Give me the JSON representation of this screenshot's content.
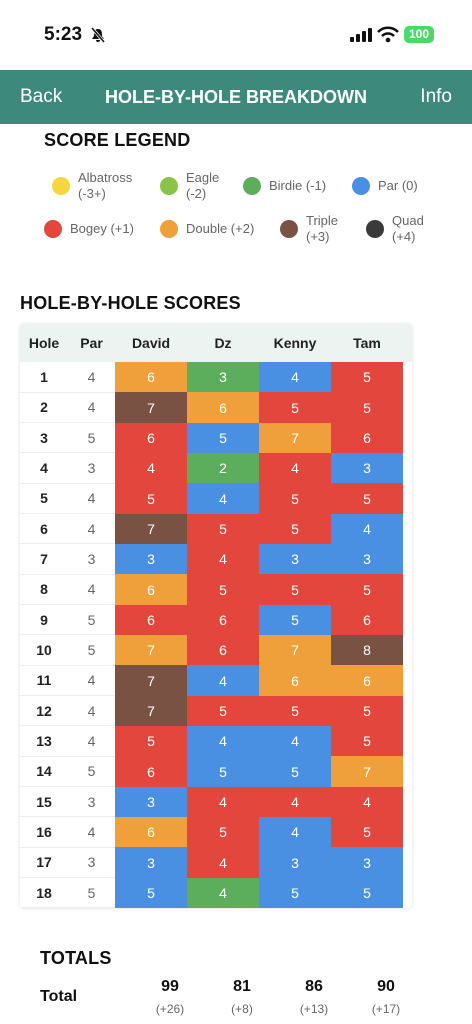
{
  "status": {
    "time": "5:23",
    "battery": "100"
  },
  "nav": {
    "back": "Back",
    "title": "HOLE-BY-HOLE BREAKDOWN",
    "info": "Info"
  },
  "legend": {
    "title": "SCORE LEGEND",
    "items": [
      {
        "lines": [
          "Albatross",
          "(-3+)"
        ],
        "color": "#f6d63f"
      },
      {
        "lines": [
          "Eagle",
          "(-2)"
        ],
        "color": "#8bc34a"
      },
      {
        "lines": [
          "Birdie (-1)"
        ],
        "color": "#5cad5c"
      },
      {
        "lines": [
          "Par (0)"
        ],
        "color": "#4a90e2"
      },
      {
        "lines": [
          "Bogey (+1)"
        ],
        "color": "#e2463c"
      },
      {
        "lines": [
          "Double (+2)"
        ],
        "color": "#f0a03a"
      },
      {
        "lines": [
          "Triple",
          "(+3)"
        ],
        "color": "#7a5244"
      },
      {
        "lines": [
          "Quad",
          "(+4)"
        ],
        "color": "#3a3a3a"
      }
    ]
  },
  "scores": {
    "title": "HOLE-BY-HOLE SCORES",
    "headers": [
      "Hole",
      "Par",
      "David",
      "Dz",
      "Kenny",
      "Tam"
    ],
    "rows": [
      [
        1,
        4,
        6,
        3,
        4,
        5
      ],
      [
        2,
        4,
        7,
        6,
        5,
        5
      ],
      [
        3,
        5,
        6,
        5,
        7,
        6
      ],
      [
        4,
        3,
        4,
        2,
        4,
        3
      ],
      [
        5,
        4,
        5,
        4,
        5,
        5
      ],
      [
        6,
        4,
        7,
        5,
        5,
        4
      ],
      [
        7,
        3,
        3,
        4,
        3,
        3
      ],
      [
        8,
        4,
        6,
        5,
        5,
        5
      ],
      [
        9,
        5,
        6,
        6,
        5,
        6
      ],
      [
        10,
        5,
        7,
        6,
        7,
        8
      ],
      [
        11,
        4,
        7,
        4,
        6,
        6
      ],
      [
        12,
        4,
        7,
        5,
        5,
        5
      ],
      [
        13,
        4,
        5,
        4,
        4,
        5
      ],
      [
        14,
        5,
        6,
        5,
        5,
        7
      ],
      [
        15,
        3,
        3,
        4,
        4,
        4
      ],
      [
        16,
        4,
        6,
        5,
        4,
        5
      ],
      [
        17,
        3,
        3,
        4,
        3,
        3
      ],
      [
        18,
        5,
        5,
        4,
        5,
        5
      ]
    ]
  },
  "totals": {
    "title": "TOTALS",
    "label": "Total",
    "values": [
      99,
      81,
      86,
      90
    ],
    "diffs": [
      "(+26)",
      "(+8)",
      "(+13)",
      "(+17)"
    ]
  }
}
